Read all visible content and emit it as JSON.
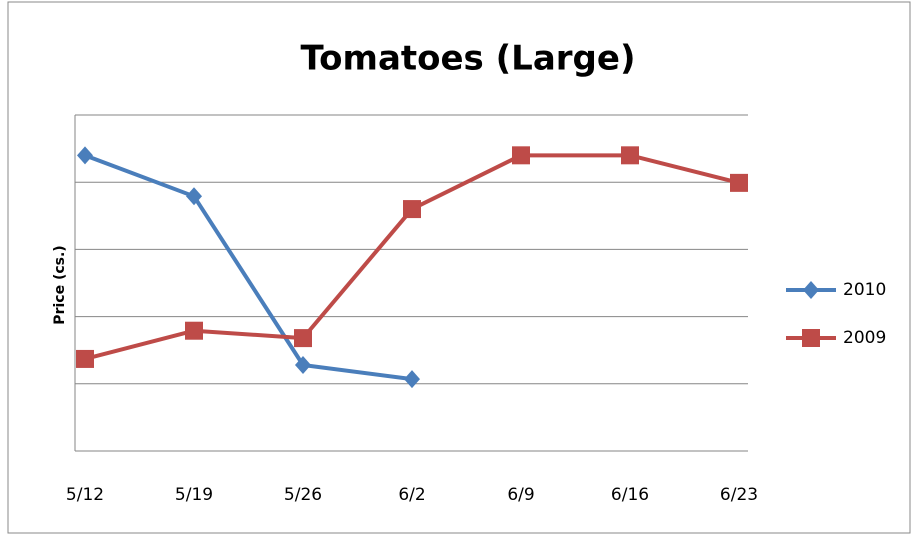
{
  "chart_data": {
    "type": "line",
    "title": "Tomatoes (Large)",
    "y_label": "Price (cs.)",
    "categories": [
      "5/12",
      "5/19",
      "5/26",
      "6/2",
      "6/9",
      "6/16",
      "6/23"
    ],
    "series": [
      {
        "name": "2010",
        "color": "#4a7ebb",
        "marker": "diamond",
        "values": [
          4.4,
          3.79,
          1.28,
          1.07,
          null,
          null,
          null
        ]
      },
      {
        "name": "2009",
        "color": "#be4b48",
        "marker": "square",
        "values": [
          1.37,
          1.79,
          1.68,
          3.6,
          4.4,
          4.4,
          3.99
        ]
      }
    ],
    "ylim": [
      0,
      5
    ],
    "yticks": [
      0,
      1,
      2,
      3,
      4,
      5
    ],
    "grid": true,
    "legend": "right"
  }
}
